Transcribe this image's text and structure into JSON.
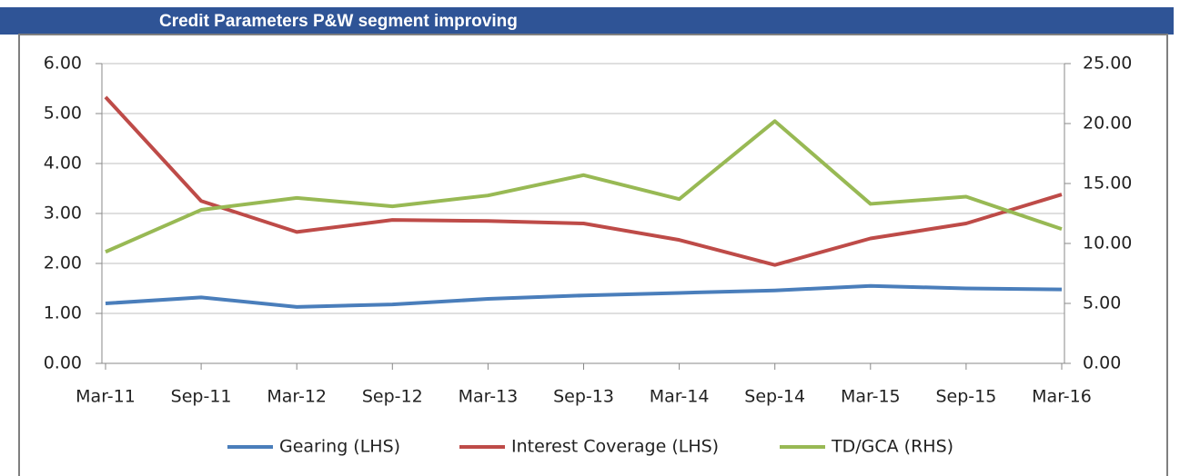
{
  "chart_data": {
    "type": "line",
    "title": "Credit Parameters P&W segment improving",
    "categories": [
      "Mar-11",
      "Sep-11",
      "Mar-12",
      "Sep-12",
      "Mar-13",
      "Sep-13",
      "Mar-14",
      "Sep-14",
      "Mar-15",
      "Sep-15",
      "Mar-16"
    ],
    "series": [
      {
        "name": "Gearing (LHS)",
        "color": "#4a7ebb",
        "values": [
          1.2,
          1.32,
          1.13,
          1.18,
          1.29,
          1.36,
          1.41,
          1.46,
          1.55,
          1.5,
          1.48
        ]
      },
      {
        "name": "Interest Coverage (LHS)",
        "color": "#be4b48",
        "values": [
          5.33,
          3.25,
          2.63,
          2.87,
          2.85,
          2.8,
          2.47,
          1.97,
          2.5,
          2.8,
          3.38
        ]
      },
      {
        "name": "TD/GCA (RHS)",
        "color": "#98b954",
        "axis": "y2",
        "values": [
          9.3,
          12.8,
          13.8,
          13.1,
          14.0,
          15.7,
          13.7,
          20.2,
          13.3,
          13.9,
          11.2
        ]
      }
    ],
    "ylim": [
      0,
      6
    ],
    "yticks": [
      {
        "value": 0,
        "label": "0.00"
      },
      {
        "value": 1,
        "label": "1.00"
      },
      {
        "value": 2,
        "label": "2.00"
      },
      {
        "value": 3,
        "label": "3.00"
      },
      {
        "value": 4,
        "label": "4.00"
      },
      {
        "value": 5,
        "label": "5.00"
      },
      {
        "value": 6,
        "label": "6.00"
      }
    ],
    "y2lim": [
      0,
      25
    ],
    "y2ticks": [
      {
        "value": 0,
        "label": "0.00"
      },
      {
        "value": 5,
        "label": "5.00"
      },
      {
        "value": 10,
        "label": "10.00"
      },
      {
        "value": 15,
        "label": "15.00"
      },
      {
        "value": 20,
        "label": "20.00"
      },
      {
        "value": 25,
        "label": "25.00"
      }
    ],
    "grid": true,
    "legend": "bottom"
  }
}
